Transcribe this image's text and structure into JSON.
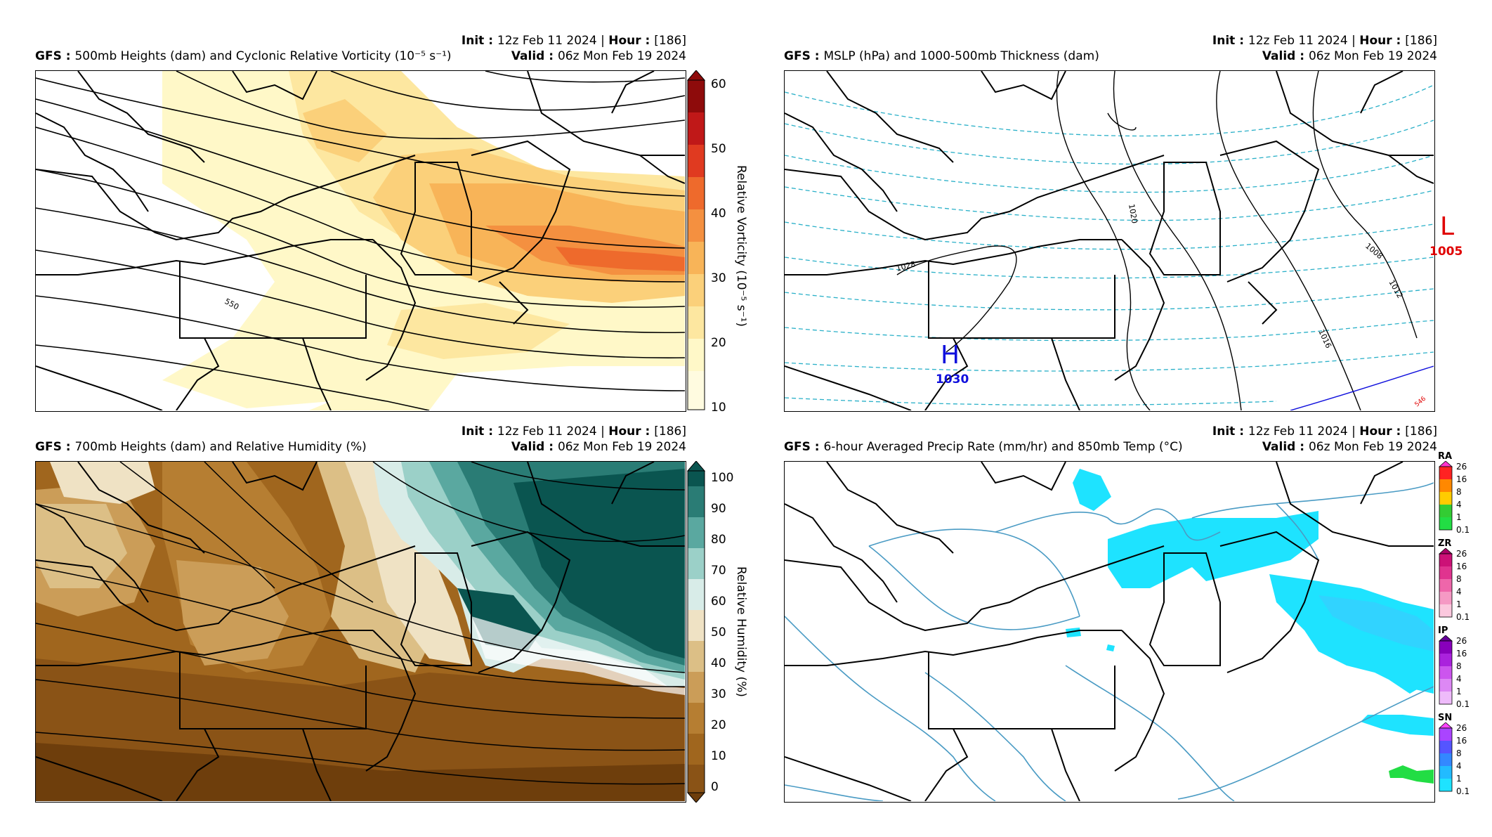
{
  "header": {
    "init_label": "Init",
    "init_value": "12z Feb 11 2024",
    "hour_label": "Hour",
    "hour_value": "[186]",
    "valid_label": "Valid",
    "valid_value": "06z Mon Feb 19 2024",
    "model": "GFS"
  },
  "panels": {
    "p500": {
      "title": "500mb Heights (dam) and Cyclonic Relative Vorticity (10⁻⁵ s⁻¹)",
      "colorbar_label": "Relative Vorticity (10⁻⁵ s⁻¹)",
      "colorbar_ticks": [
        "60",
        "50",
        "40",
        "30",
        "20",
        "10"
      ],
      "contour_label": "550"
    },
    "mslp": {
      "title": "MSLP (hPa) and 1000-500mb Thickness (dam)",
      "high_letter": "H",
      "high_value": "1030",
      "low_letter": "L",
      "low_value": "1005",
      "isobar_labels": [
        "1028",
        "1020",
        "1016",
        "1012",
        "1008"
      ],
      "thickness_label": "546",
      "high_color": "#1010dd",
      "low_color": "#e00000"
    },
    "p700": {
      "title": "700mb Heights (dam) and Relative Humidity (%)",
      "colorbar_label": "Relative Humidity (%)",
      "colorbar_ticks": [
        "100",
        "90",
        "80",
        "70",
        "60",
        "50",
        "40",
        "30",
        "20",
        "10",
        "0"
      ]
    },
    "precip": {
      "title": "6-hour Averaged Precip Rate (mm/hr) and 850mb Temp (°C)",
      "bars": [
        {
          "name": "RA",
          "ticks": [
            "26",
            "16",
            "8",
            "4",
            "1",
            "0.1"
          ]
        },
        {
          "name": "ZR",
          "ticks": [
            "26",
            "16",
            "8",
            "4",
            "1",
            "0.1"
          ]
        },
        {
          "name": "IP",
          "ticks": [
            "26",
            "16",
            "8",
            "4",
            "1",
            "0.1"
          ]
        },
        {
          "name": "SN",
          "ticks": [
            "26",
            "16",
            "8",
            "4",
            "1",
            "0.1"
          ]
        }
      ]
    }
  },
  "colors": {
    "vort": [
      "#fff8c8",
      "#fde7a0",
      "#fbd07a",
      "#f8b458",
      "#f49040",
      "#ee6a2c",
      "#e03a20",
      "#c01818",
      "#8e0b0b"
    ],
    "rh": [
      "#6e3e0c",
      "#8a5316",
      "#a0661e",
      "#b67e32",
      "#cb9d58",
      "#dcbf86",
      "#efe2c4",
      "#d8ece8",
      "#9bd0c8",
      "#5aa8a0",
      "#2a7c75",
      "#0a5550"
    ],
    "snow": "#1ee3ff",
    "rain": "#22dd44",
    "thickness_line": "#2ab0c8",
    "temp_line": "#4a9bc4"
  }
}
